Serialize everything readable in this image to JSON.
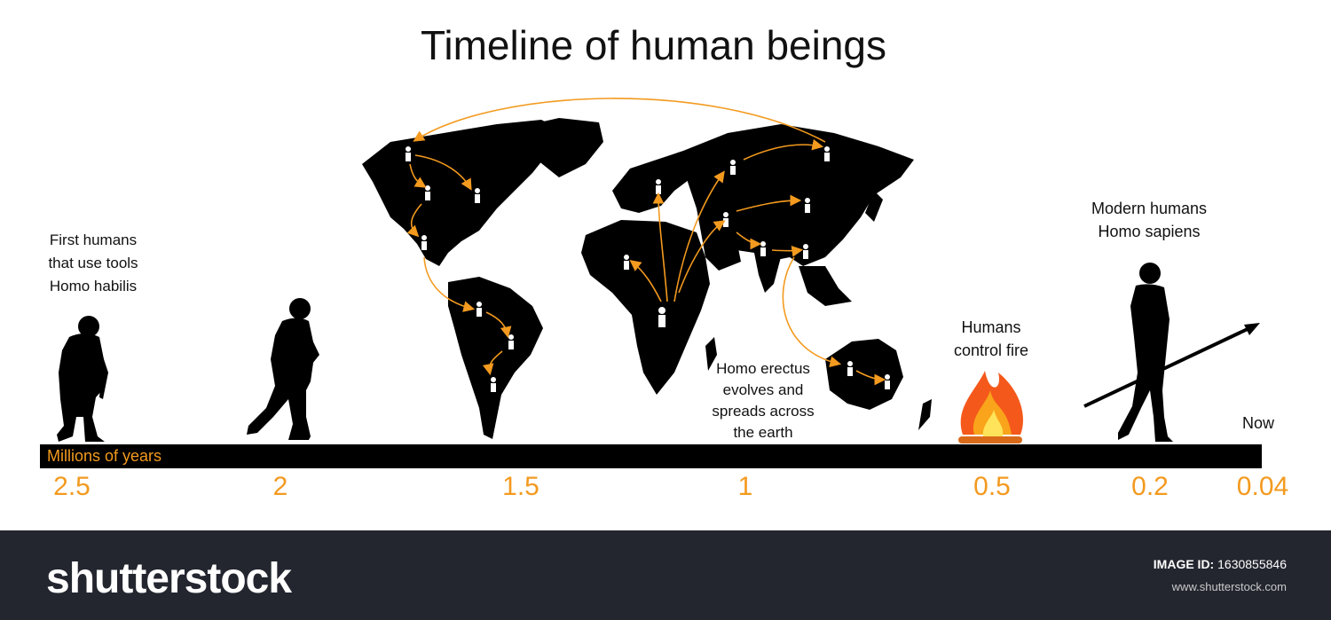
{
  "title": "Timeline of human beings",
  "axis_label": "Millions of years",
  "ticks": [
    "2.5",
    "2",
    "1.5",
    "1",
    "0.5",
    "0.2",
    "0.04"
  ],
  "labels": {
    "habilis": [
      "First humans",
      "that use tools",
      "Homo habilis"
    ],
    "erectus": [
      "Homo erectus",
      "evolves and",
      "spreads across",
      "the earth"
    ],
    "fire": [
      "Humans",
      "control fire"
    ],
    "sapiens": [
      "Modern humans",
      "Homo sapiens"
    ],
    "now": "Now"
  },
  "footer": {
    "brand": "shutterstock",
    "image_id_label": "IMAGE ID:",
    "image_id": "1630855846",
    "site": "www.shutterstock.com"
  },
  "colors": {
    "accent": "#f39a1f",
    "footer_bg": "#23262f",
    "silhouette": "#000000"
  }
}
